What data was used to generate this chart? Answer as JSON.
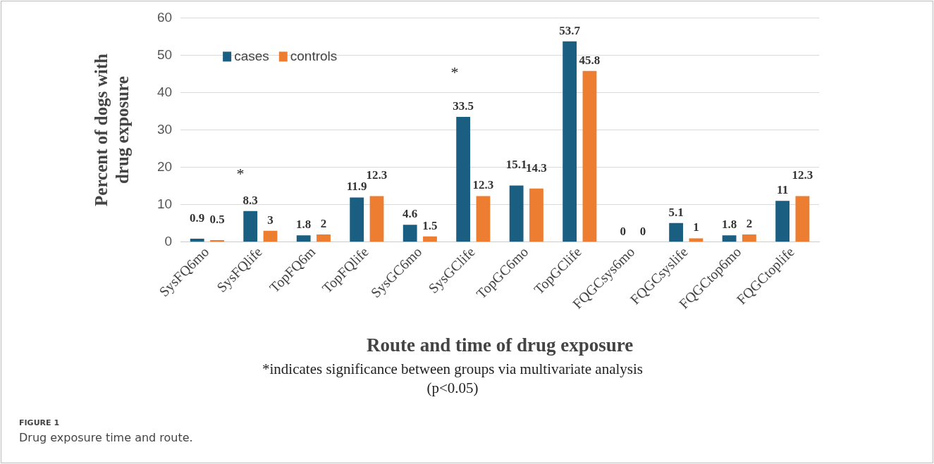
{
  "chart_data": {
    "type": "bar",
    "categories": [
      "SysFQ6mo",
      "SysFQlife",
      "TopFQ6m",
      "TopFQlife",
      "SysGC6mo",
      "SysGClife",
      "TopGC6mo",
      "TopGClife",
      "FQGCsys6mo",
      "FQGCsyslife",
      "FQGCtop6mo",
      "FQGCtoplife"
    ],
    "series": [
      {
        "name": "cases",
        "color": "#1a5e82",
        "values": [
          0.9,
          8.3,
          1.8,
          11.9,
          4.6,
          33.5,
          15.1,
          53.7,
          0,
          5.1,
          1.8,
          11
        ]
      },
      {
        "name": "controls",
        "color": "#ed7d31",
        "values": [
          0.5,
          3,
          2,
          12.3,
          1.5,
          12.3,
          14.3,
          45.8,
          0,
          1,
          2,
          12.3
        ]
      }
    ],
    "ylim": [
      0,
      60
    ],
    "yticks": [
      0,
      10,
      20,
      30,
      40,
      50,
      60
    ],
    "grid": "y",
    "legend": "top left",
    "data_labels": true,
    "xlabel": "Route and time of drug exposure",
    "ylabel": "Percent of dogs with drug exposure",
    "annotations": [
      "*",
      "*",
      "*indicates significance between groups via multivariate analysis",
      "(p<0.05)",
      "FIGURE 1",
      "Drug exposure time and route."
    ]
  }
}
